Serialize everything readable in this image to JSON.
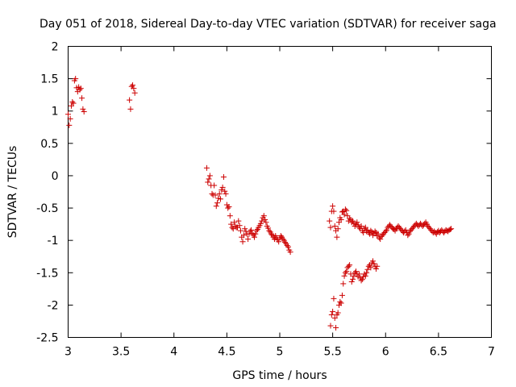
{
  "chart_data": {
    "type": "scatter",
    "title": "Day 051 of 2018, Sidereal Day-to-day VTEC variation (SDTVAR) for receiver saga",
    "xlabel": "GPS time / hours",
    "ylabel": "SDTVAR / TECUs",
    "xlim": [
      3,
      7
    ],
    "ylim": [
      -2.5,
      2
    ],
    "xticks": [
      "3",
      "3.5",
      "4",
      "4.5",
      "5",
      "5.5",
      "6",
      "6.5",
      "7"
    ],
    "yticks": [
      "2",
      "1.5",
      "1",
      "0.5",
      "0",
      "-0.5",
      "-1",
      "-1.5",
      "-2",
      "-2.5"
    ],
    "grid": false,
    "marker": "+",
    "color": "#cc0000",
    "series": [
      {
        "name": "SDTVAR",
        "points": [
          [
            3.0,
            0.95
          ],
          [
            3.01,
            0.78
          ],
          [
            3.02,
            0.88
          ],
          [
            3.03,
            1.08
          ],
          [
            3.04,
            1.14
          ],
          [
            3.05,
            1.12
          ],
          [
            3.06,
            1.47
          ],
          [
            3.07,
            1.5
          ],
          [
            3.08,
            1.36
          ],
          [
            3.09,
            1.3
          ],
          [
            3.1,
            1.37
          ],
          [
            3.11,
            1.33
          ],
          [
            3.12,
            1.35
          ],
          [
            3.13,
            1.2
          ],
          [
            3.14,
            1.03
          ],
          [
            3.15,
            0.99
          ],
          [
            3.58,
            1.17
          ],
          [
            3.59,
            1.03
          ],
          [
            3.6,
            1.38
          ],
          [
            3.61,
            1.4
          ],
          [
            3.62,
            1.35
          ],
          [
            3.63,
            1.28
          ],
          [
            4.31,
            0.12
          ],
          [
            4.32,
            -0.1
          ],
          [
            4.33,
            -0.05
          ],
          [
            4.34,
            0.0
          ],
          [
            4.35,
            -0.15
          ],
          [
            4.36,
            -0.28
          ],
          [
            4.37,
            -0.3
          ],
          [
            4.38,
            -0.15
          ],
          [
            4.39,
            -0.3
          ],
          [
            4.4,
            -0.47
          ],
          [
            4.41,
            -0.42
          ],
          [
            4.42,
            -0.35
          ],
          [
            4.43,
            -0.28
          ],
          [
            4.44,
            -0.36
          ],
          [
            4.45,
            -0.22
          ],
          [
            4.46,
            -0.18
          ],
          [
            4.47,
            -0.02
          ],
          [
            4.48,
            -0.24
          ],
          [
            4.49,
            -0.28
          ],
          [
            4.5,
            -0.45
          ],
          [
            4.51,
            -0.5
          ],
          [
            4.52,
            -0.48
          ],
          [
            4.53,
            -0.62
          ],
          [
            4.54,
            -0.75
          ],
          [
            4.55,
            -0.8
          ],
          [
            4.56,
            -0.82
          ],
          [
            4.57,
            -0.72
          ],
          [
            4.58,
            -0.78
          ],
          [
            4.59,
            -0.8
          ],
          [
            4.6,
            -0.8
          ],
          [
            4.61,
            -0.7
          ],
          [
            4.62,
            -0.77
          ],
          [
            4.63,
            -0.85
          ],
          [
            4.64,
            -0.95
          ],
          [
            4.65,
            -1.02
          ],
          [
            4.66,
            -0.92
          ],
          [
            4.67,
            -0.82
          ],
          [
            4.68,
            -0.86
          ],
          [
            4.69,
            -0.9
          ],
          [
            4.7,
            -0.98
          ],
          [
            4.71,
            -0.9
          ],
          [
            4.72,
            -0.86
          ],
          [
            4.73,
            -0.84
          ],
          [
            4.74,
            -0.89
          ],
          [
            4.75,
            -0.92
          ],
          [
            4.76,
            -0.95
          ],
          [
            4.77,
            -0.9
          ],
          [
            4.78,
            -0.85
          ],
          [
            4.79,
            -0.83
          ],
          [
            4.8,
            -0.8
          ],
          [
            4.81,
            -0.77
          ],
          [
            4.82,
            -0.74
          ],
          [
            4.83,
            -0.7
          ],
          [
            4.84,
            -0.65
          ],
          [
            4.85,
            -0.62
          ],
          [
            4.86,
            -0.68
          ],
          [
            4.87,
            -0.72
          ],
          [
            4.88,
            -0.78
          ],
          [
            4.89,
            -0.81
          ],
          [
            4.9,
            -0.85
          ],
          [
            4.91,
            -0.87
          ],
          [
            4.92,
            -0.9
          ],
          [
            4.93,
            -0.92
          ],
          [
            4.94,
            -0.95
          ],
          [
            4.95,
            -0.98
          ],
          [
            4.96,
            -0.93
          ],
          [
            4.97,
            -0.96
          ],
          [
            4.98,
            -0.99
          ],
          [
            4.99,
            -1.02
          ],
          [
            5.0,
            -0.96
          ],
          [
            5.01,
            -0.93
          ],
          [
            5.02,
            -0.95
          ],
          [
            5.03,
            -0.98
          ],
          [
            5.04,
            -1.0
          ],
          [
            5.05,
            -1.03
          ],
          [
            5.06,
            -1.05
          ],
          [
            5.07,
            -1.08
          ],
          [
            5.08,
            -1.1
          ],
          [
            5.09,
            -1.15
          ],
          [
            5.1,
            -1.18
          ],
          [
            5.47,
            -0.7
          ],
          [
            5.48,
            -0.8
          ],
          [
            5.49,
            -0.55
          ],
          [
            5.5,
            -0.47
          ],
          [
            5.51,
            -0.55
          ],
          [
            5.52,
            -0.78
          ],
          [
            5.53,
            -0.85
          ],
          [
            5.54,
            -0.95
          ],
          [
            5.55,
            -0.82
          ],
          [
            5.56,
            -0.72
          ],
          [
            5.57,
            -0.65
          ],
          [
            5.58,
            -0.68
          ],
          [
            5.59,
            -0.56
          ],
          [
            5.6,
            -0.55
          ],
          [
            5.61,
            -0.6
          ],
          [
            5.62,
            -0.52
          ],
          [
            5.63,
            -0.54
          ],
          [
            5.64,
            -0.62
          ],
          [
            5.65,
            -0.7
          ],
          [
            5.66,
            -0.66
          ],
          [
            5.67,
            -0.68
          ],
          [
            5.68,
            -0.72
          ],
          [
            5.69,
            -0.7
          ],
          [
            5.7,
            -0.74
          ],
          [
            5.71,
            -0.78
          ],
          [
            5.72,
            -0.75
          ],
          [
            5.73,
            -0.72
          ],
          [
            5.74,
            -0.76
          ],
          [
            5.75,
            -0.8
          ],
          [
            5.76,
            -0.82
          ],
          [
            5.77,
            -0.78
          ],
          [
            5.78,
            -0.85
          ],
          [
            5.79,
            -0.88
          ],
          [
            5.8,
            -0.82
          ],
          [
            5.81,
            -0.8
          ],
          [
            5.82,
            -0.86
          ],
          [
            5.83,
            -0.84
          ],
          [
            5.84,
            -0.88
          ],
          [
            5.85,
            -0.9
          ],
          [
            5.86,
            -0.85
          ],
          [
            5.87,
            -0.87
          ],
          [
            5.88,
            -0.92
          ],
          [
            5.89,
            -0.89
          ],
          [
            5.9,
            -0.86
          ],
          [
            5.91,
            -0.88
          ],
          [
            5.92,
            -0.93
          ],
          [
            5.93,
            -0.9
          ],
          [
            5.94,
            -0.96
          ],
          [
            5.95,
            -0.98
          ],
          [
            5.96,
            -0.94
          ],
          [
            5.97,
            -0.92
          ],
          [
            5.98,
            -0.9
          ],
          [
            5.99,
            -0.88
          ],
          [
            6.0,
            -0.86
          ],
          [
            6.01,
            -0.84
          ],
          [
            6.02,
            -0.8
          ],
          [
            6.03,
            -0.78
          ],
          [
            6.04,
            -0.76
          ],
          [
            6.05,
            -0.78
          ],
          [
            6.06,
            -0.8
          ],
          [
            6.07,
            -0.82
          ],
          [
            6.08,
            -0.83
          ],
          [
            6.09,
            -0.85
          ],
          [
            6.1,
            -0.82
          ],
          [
            6.11,
            -0.8
          ],
          [
            6.12,
            -0.78
          ],
          [
            6.13,
            -0.8
          ],
          [
            6.14,
            -0.82
          ],
          [
            6.15,
            -0.84
          ],
          [
            6.16,
            -0.86
          ],
          [
            6.17,
            -0.88
          ],
          [
            6.18,
            -0.86
          ],
          [
            6.19,
            -0.84
          ],
          [
            6.2,
            -0.88
          ],
          [
            6.21,
            -0.92
          ],
          [
            6.22,
            -0.9
          ],
          [
            6.23,
            -0.86
          ],
          [
            6.24,
            -0.84
          ],
          [
            6.25,
            -0.82
          ],
          [
            6.26,
            -0.8
          ],
          [
            6.27,
            -0.78
          ],
          [
            6.28,
            -0.76
          ],
          [
            6.29,
            -0.74
          ],
          [
            6.3,
            -0.76
          ],
          [
            6.31,
            -0.78
          ],
          [
            6.32,
            -0.76
          ],
          [
            6.33,
            -0.74
          ],
          [
            6.34,
            -0.76
          ],
          [
            6.35,
            -0.78
          ],
          [
            6.36,
            -0.76
          ],
          [
            6.37,
            -0.74
          ],
          [
            6.38,
            -0.72
          ],
          [
            6.39,
            -0.75
          ],
          [
            6.4,
            -0.78
          ],
          [
            6.41,
            -0.8
          ],
          [
            6.42,
            -0.82
          ],
          [
            6.43,
            -0.84
          ],
          [
            6.44,
            -0.86
          ],
          [
            6.45,
            -0.88
          ],
          [
            6.46,
            -0.86
          ],
          [
            6.47,
            -0.88
          ],
          [
            6.48,
            -0.9
          ],
          [
            6.49,
            -0.87
          ],
          [
            6.5,
            -0.85
          ],
          [
            6.51,
            -0.88
          ],
          [
            6.52,
            -0.86
          ],
          [
            6.53,
            -0.84
          ],
          [
            6.54,
            -0.86
          ],
          [
            6.55,
            -0.88
          ],
          [
            6.56,
            -0.86
          ],
          [
            6.57,
            -0.84
          ],
          [
            6.58,
            -0.85
          ],
          [
            6.59,
            -0.86
          ],
          [
            6.6,
            -0.84
          ],
          [
            6.61,
            -0.83
          ],
          [
            6.62,
            -0.82
          ],
          [
            5.48,
            -2.32
          ],
          [
            5.49,
            -2.15
          ],
          [
            5.5,
            -2.1
          ],
          [
            5.51,
            -1.9
          ],
          [
            5.52,
            -2.2
          ],
          [
            5.53,
            -2.35
          ],
          [
            5.54,
            -2.15
          ],
          [
            5.55,
            -2.12
          ],
          [
            5.56,
            -2.0
          ],
          [
            5.57,
            -1.95
          ],
          [
            5.58,
            -1.97
          ],
          [
            5.59,
            -1.85
          ],
          [
            5.6,
            -1.67
          ],
          [
            5.61,
            -1.55
          ],
          [
            5.62,
            -1.5
          ],
          [
            5.63,
            -1.48
          ],
          [
            5.64,
            -1.42
          ],
          [
            5.65,
            -1.4
          ],
          [
            5.66,
            -1.38
          ],
          [
            5.67,
            -1.52
          ],
          [
            5.68,
            -1.64
          ],
          [
            5.69,
            -1.6
          ],
          [
            5.7,
            -1.55
          ],
          [
            5.71,
            -1.5
          ],
          [
            5.72,
            -1.48
          ],
          [
            5.73,
            -1.52
          ],
          [
            5.74,
            -1.56
          ],
          [
            5.75,
            -1.52
          ],
          [
            5.76,
            -1.58
          ],
          [
            5.77,
            -1.62
          ],
          [
            5.78,
            -1.6
          ],
          [
            5.79,
            -1.56
          ],
          [
            5.8,
            -1.52
          ],
          [
            5.81,
            -1.55
          ],
          [
            5.82,
            -1.5
          ],
          [
            5.83,
            -1.45
          ],
          [
            5.84,
            -1.4
          ],
          [
            5.85,
            -1.38
          ],
          [
            5.86,
            -1.42
          ],
          [
            5.87,
            -1.35
          ],
          [
            5.88,
            -1.32
          ],
          [
            5.89,
            -1.36
          ],
          [
            5.9,
            -1.4
          ],
          [
            5.91,
            -1.44
          ],
          [
            5.92,
            -1.4
          ]
        ]
      }
    ]
  }
}
